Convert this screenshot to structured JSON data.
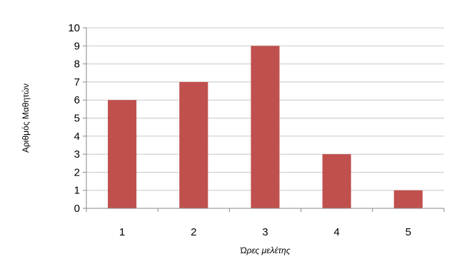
{
  "chart_data": {
    "type": "bar",
    "categories": [
      "1",
      "2",
      "3",
      "4",
      "5"
    ],
    "values": [
      6,
      7,
      9,
      3,
      1
    ],
    "xlabel": "Ώρες μελέτης",
    "ylabel": "Αριθμός Μαθητών",
    "ylim": [
      0,
      10
    ],
    "yticks": [
      "0",
      "1",
      "2",
      "3",
      "4",
      "5",
      "6",
      "7",
      "8",
      "9",
      "10"
    ],
    "grid": true,
    "bar_color": "#c0504d",
    "grid_color": "#c8c8c8",
    "axis_color": "#888888"
  }
}
